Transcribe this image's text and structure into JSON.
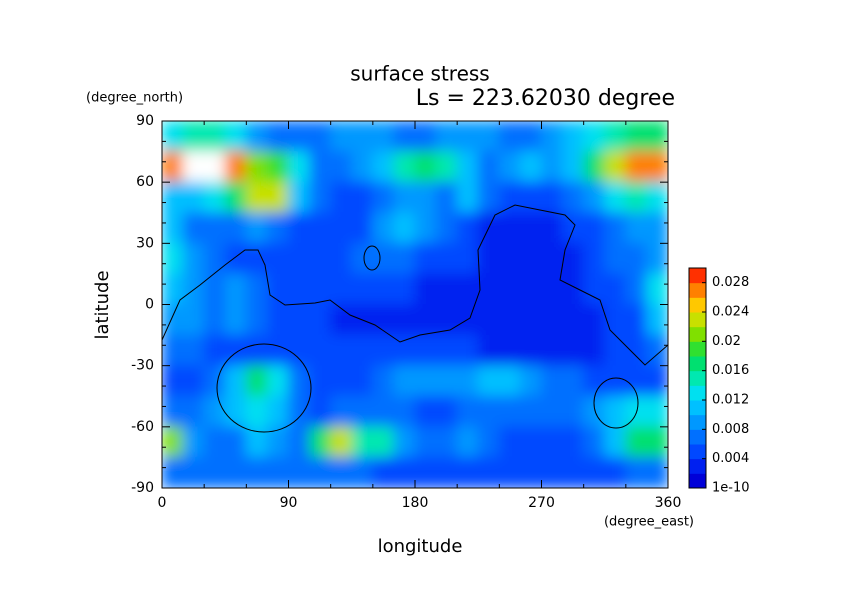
{
  "chart_data": {
    "type": "contour",
    "title": "surface stress",
    "subtitle": "Ls = 223.62030 degree",
    "x_label": "longitude",
    "y_label": "latitude",
    "x_units": "(degree_east)",
    "y_units": "(degree_north)",
    "xlim": [
      0,
      360
    ],
    "ylim": [
      -90,
      90
    ],
    "xticks": [
      0,
      90,
      180,
      270,
      360
    ],
    "yticks": [
      -90,
      -60,
      -30,
      0,
      30,
      60,
      90
    ],
    "x": [
      7.5,
      22.5,
      37.5,
      52.5,
      67.5,
      82.5,
      97.5,
      112.5,
      127.5,
      142.5,
      157.5,
      172.5,
      187.5,
      202.5,
      217.5,
      232.5,
      247.5,
      262.5,
      277.5,
      292.5,
      307.5,
      322.5,
      337.5,
      352.5
    ],
    "y": [
      82.5,
      67.5,
      52.5,
      37.5,
      22.5,
      7.5,
      -7.5,
      -22.5,
      -37.5,
      -52.5,
      -67.5,
      -82.5
    ],
    "z": [
      [
        0.012,
        0.014,
        0.014,
        0.012,
        0.008,
        0.006,
        0.006,
        0.006,
        0.008,
        0.008,
        0.008,
        0.006,
        0.006,
        0.008,
        0.008,
        0.008,
        0.006,
        0.006,
        0.008,
        0.01,
        0.012,
        0.014,
        0.016,
        0.016
      ],
      [
        0.026,
        0.03,
        0.032,
        0.026,
        0.02,
        0.018,
        0.012,
        0.006,
        0.006,
        0.008,
        0.01,
        0.014,
        0.016,
        0.014,
        0.01,
        0.006,
        0.008,
        0.01,
        0.008,
        0.01,
        0.016,
        0.022,
        0.026,
        0.026
      ],
      [
        0.01,
        0.01,
        0.012,
        0.016,
        0.022,
        0.022,
        0.01,
        0.006,
        0.004,
        0.004,
        0.006,
        0.008,
        0.008,
        0.006,
        0.01,
        0.006,
        0.004,
        0.004,
        0.004,
        0.006,
        0.008,
        0.012,
        0.014,
        0.012
      ],
      [
        0.01,
        0.006,
        0.006,
        0.006,
        0.008,
        0.006,
        0.004,
        0.004,
        0.004,
        0.004,
        0.008,
        0.01,
        0.008,
        0.006,
        0.004,
        0.002,
        0.002,
        0.002,
        0.002,
        0.004,
        0.004,
        0.006,
        0.008,
        0.008
      ],
      [
        0.012,
        0.008,
        0.006,
        0.004,
        0.004,
        0.004,
        0.004,
        0.004,
        0.004,
        0.006,
        0.006,
        0.006,
        0.004,
        0.004,
        0.004,
        0.002,
        0.002,
        0.002,
        0.002,
        0.002,
        0.004,
        0.006,
        0.006,
        0.008
      ],
      [
        0.01,
        0.008,
        0.006,
        0.008,
        0.006,
        0.004,
        0.004,
        0.004,
        0.004,
        0.004,
        0.004,
        0.004,
        0.002,
        0.002,
        0.002,
        0.002,
        0.002,
        0.002,
        0.002,
        0.002,
        0.004,
        0.004,
        0.006,
        0.012
      ],
      [
        0.008,
        0.008,
        0.006,
        0.008,
        0.006,
        0.004,
        0.004,
        0.004,
        0.002,
        0.002,
        0.002,
        0.002,
        0.002,
        0.002,
        0.002,
        0.002,
        0.002,
        0.002,
        0.002,
        0.002,
        0.002,
        0.004,
        0.004,
        0.01
      ],
      [
        0.006,
        0.006,
        0.004,
        0.004,
        0.004,
        0.004,
        0.004,
        0.004,
        0.004,
        0.004,
        0.004,
        0.004,
        0.004,
        0.004,
        0.004,
        0.002,
        0.002,
        0.002,
        0.002,
        0.002,
        0.002,
        0.004,
        0.004,
        0.006
      ],
      [
        0.004,
        0.004,
        0.006,
        0.01,
        0.016,
        0.012,
        0.006,
        0.004,
        0.004,
        0.004,
        0.006,
        0.008,
        0.008,
        0.008,
        0.008,
        0.01,
        0.01,
        0.008,
        0.006,
        0.006,
        0.004,
        0.004,
        0.004,
        0.004
      ],
      [
        0.006,
        0.006,
        0.008,
        0.01,
        0.012,
        0.01,
        0.006,
        0.004,
        0.006,
        0.006,
        0.006,
        0.006,
        0.004,
        0.004,
        0.006,
        0.006,
        0.006,
        0.006,
        0.006,
        0.006,
        0.008,
        0.01,
        0.012,
        0.012
      ],
      [
        0.02,
        0.008,
        0.006,
        0.006,
        0.01,
        0.008,
        0.006,
        0.016,
        0.022,
        0.014,
        0.014,
        0.008,
        0.006,
        0.006,
        0.008,
        0.006,
        0.004,
        0.004,
        0.004,
        0.004,
        0.006,
        0.01,
        0.016,
        0.016
      ],
      [
        0.006,
        0.006,
        0.006,
        0.006,
        0.006,
        0.006,
        0.006,
        0.006,
        0.006,
        0.006,
        0.004,
        0.004,
        0.004,
        0.004,
        0.004,
        0.004,
        0.004,
        0.004,
        0.004,
        0.004,
        0.004,
        0.004,
        0.006,
        0.006
      ]
    ],
    "colorbar": {
      "clim": [
        0,
        0.03
      ],
      "ticks": [
        1e-10,
        0.004,
        0.008,
        0.012,
        0.016,
        0.02,
        0.024,
        0.028
      ],
      "colors": [
        "#0000d8",
        "#0020f0",
        "#0048ff",
        "#0070ff",
        "#0098ff",
        "#00c0ff",
        "#00e0f0",
        "#00e8b0",
        "#00e070",
        "#30e030",
        "#80e000",
        "#c8e000",
        "#ffc800",
        "#ff8000",
        "#ff3000"
      ],
      "over_color": "#ffffff"
    }
  }
}
